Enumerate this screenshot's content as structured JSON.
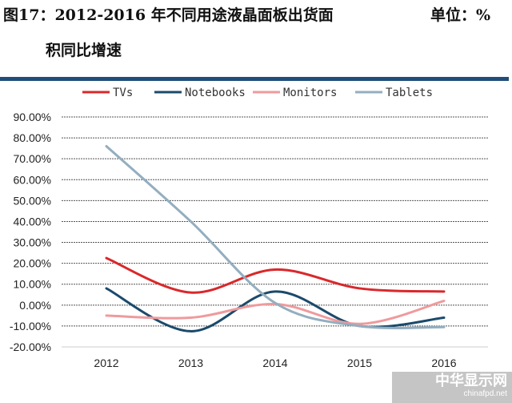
{
  "title_line1": "图17：2012-2016 年不同用途液晶面板出货面",
  "title_line2": "积同比增速",
  "unit": "单位：%",
  "watermark": {
    "text": "中华显示网",
    "sub": "chinafpd.net"
  },
  "chart_data": {
    "type": "line",
    "title": "2012-2016 年不同用途液晶面板出货面积同比增速",
    "categories": [
      "2012",
      "2013",
      "2014",
      "2015",
      "2016"
    ],
    "ylim": [
      -20,
      90
    ],
    "yticks": [
      90,
      80,
      70,
      60,
      50,
      40,
      30,
      20,
      10,
      0,
      -10,
      -20
    ],
    "ytick_labels": [
      "90.00%",
      "80.00%",
      "70.00%",
      "60.00%",
      "50.00%",
      "40.00%",
      "30.00%",
      "20.00%",
      "10.00%",
      "0.00%",
      "-10.00%",
      "-20.00%"
    ],
    "grid": true,
    "legend_position": "top",
    "series": [
      {
        "name": "TVs",
        "color": "#d9282b",
        "values": [
          22.5,
          6,
          17,
          8,
          6.5
        ]
      },
      {
        "name": "Notebooks",
        "color": "#1b4a6b",
        "values": [
          8,
          -12.5,
          6.5,
          -10,
          -6
        ]
      },
      {
        "name": "Monitors",
        "color": "#ef9a9d",
        "values": [
          -5,
          -6,
          0.5,
          -9,
          2
        ]
      },
      {
        "name": "Tablets",
        "color": "#93aebf",
        "values": [
          76,
          40,
          1,
          -10,
          -10.5
        ]
      }
    ]
  }
}
